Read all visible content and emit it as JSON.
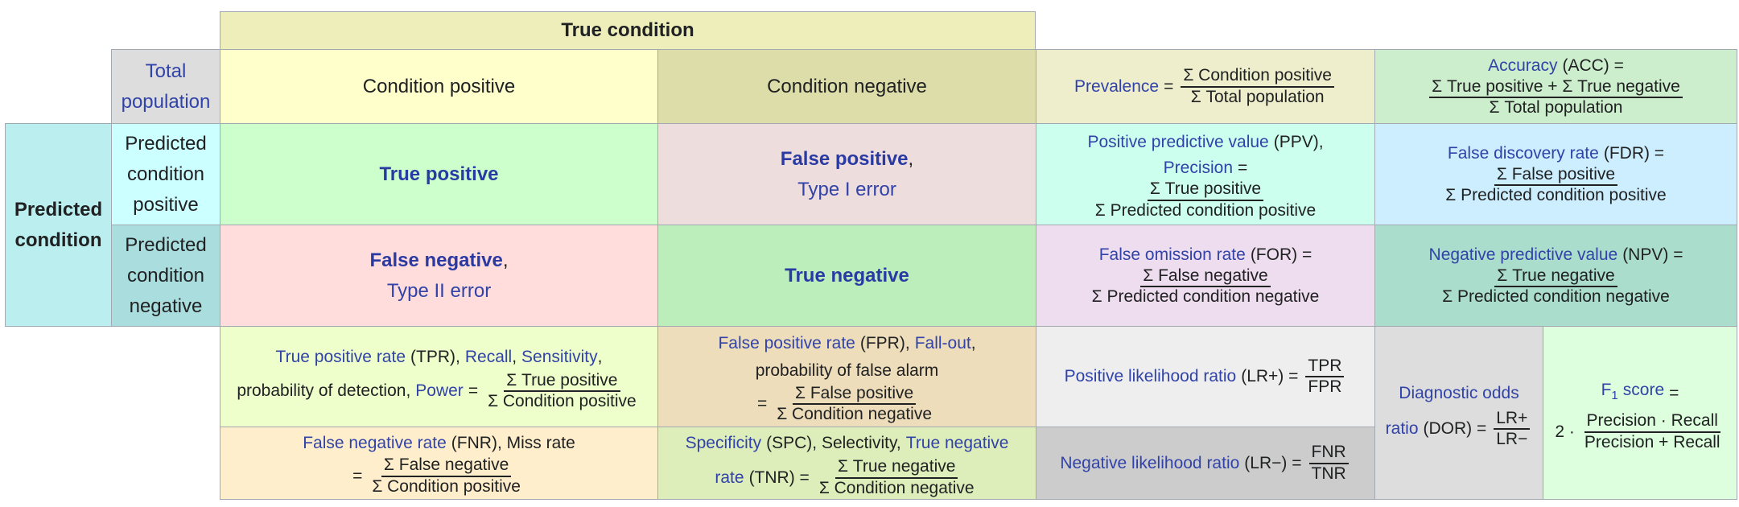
{
  "header": {
    "true_condition": "True condition"
  },
  "total_population": [
    "Total",
    "population"
  ],
  "condition_positive": "Condition positive",
  "condition_negative": "Condition negative",
  "prevalence": {
    "label": "Prevalence",
    "eq": "=",
    "num": "Σ Condition positive",
    "den": "Σ Total population"
  },
  "accuracy": {
    "label": "Accuracy",
    "abbr": "(ACC) =",
    "num": "Σ True positive + Σ True negative",
    "den": "Σ Total population"
  },
  "predicted_condition": [
    "Predicted",
    "condition"
  ],
  "predicted_positive": [
    "Predicted",
    "condition",
    "positive"
  ],
  "predicted_negative": [
    "Predicted",
    "condition",
    "negative"
  ],
  "true_positive": "True positive",
  "false_positive": {
    "bold": "False positive",
    "comma": ",",
    "sub": "Type I error"
  },
  "false_negative": {
    "bold": "False negative",
    "comma": ",",
    "sub": "Type II error"
  },
  "true_negative": "True negative",
  "ppv": {
    "label": "Positive predictive value",
    "abbr": "(PPV),",
    "label2": "Precision",
    "eq": "=",
    "num": "Σ True positive",
    "den": "Σ Predicted condition positive"
  },
  "fdr": {
    "label": "False discovery rate",
    "abbr": "(FDR) =",
    "num": "Σ False positive",
    "den": "Σ Predicted condition positive"
  },
  "for_rate": {
    "label": "False omission rate",
    "abbr": "(FOR) =",
    "num": "Σ False negative",
    "den": "Σ Predicted condition negative"
  },
  "npv": {
    "label": "Negative predictive value",
    "abbr": "(NPV) =",
    "num": "Σ True negative",
    "den": "Σ Predicted condition negative"
  },
  "tpr": {
    "l1": "True positive rate",
    "t1": "(TPR),",
    "l2": "Recall",
    "t2": ",",
    "l3": "Sensitivity",
    "t3": ",",
    "t4": "probability of detection,",
    "l4": "Power",
    "eq": "=",
    "num": "Σ True positive",
    "den": "Σ Condition positive"
  },
  "fpr": {
    "l1": "False positive rate",
    "t1": "(FPR),",
    "l2": "Fall-out",
    "t2": ",",
    "t3": "probability of false alarm",
    "eq": "=",
    "num": "Σ False positive",
    "den": "Σ Condition negative"
  },
  "fnr": {
    "l1": "False negative rate",
    "t1": "(FNR), Miss rate",
    "eq": "=",
    "num": "Σ False negative",
    "den": "Σ Condition positive"
  },
  "spc": {
    "l1": "Specificity",
    "t1": "(SPC), Selectivity,",
    "l2": "True negative",
    "l3": "rate",
    "t2": "(TNR) =",
    "num": "Σ True negative",
    "den": "Σ Condition negative"
  },
  "lr_pos": {
    "label": "Positive likelihood ratio",
    "abbr": "(LR+) =",
    "num": "TPR",
    "den": "FPR"
  },
  "lr_neg": {
    "label": "Negative likelihood ratio",
    "abbr": "(LR−) =",
    "num": "FNR",
    "den": "TNR"
  },
  "dor": {
    "label1": "Diagnostic odds",
    "label2": "ratio",
    "abbr": "(DOR) =",
    "num": "LR+",
    "den": "LR−"
  },
  "f1": {
    "label": "F",
    "sub": "1",
    "label_rest": "score",
    "eq": "=",
    "lead": "2 ·",
    "num": "Precision · Recall",
    "den": "Precision + Recall"
  },
  "colors": {
    "border": "#a2a9b1",
    "link": "#3143a8",
    "true_condition_bg": "#eeeebb",
    "total_pop_bg": "#dddddd",
    "cond_pos_bg": "#ffffcc",
    "cond_neg_bg": "#ddddaa",
    "prevalence_bg": "#eeeecc",
    "accuracy_bg": "#cceecc",
    "pred_cond_bg": "#bbeeee",
    "pred_pos_bg": "#ccffff",
    "pred_neg_bg": "#aadddd",
    "tp_bg": "#ccffcc",
    "fp_bg": "#eedddd",
    "fn_bg": "#ffdddd",
    "tn_bg": "#bbeebb",
    "ppv_bg": "#ccffee",
    "fdr_bg": "#cceeff",
    "for_bg": "#eeddee",
    "npv_bg": "#aaddcc",
    "tpr_bg": "#eeffcc",
    "fpr_bg": "#eeddbb",
    "fnr_bg": "#ffeecc",
    "spc_bg": "#ddeebb",
    "lrpos_bg": "#eeeeee",
    "lrneg_bg": "#cccccc",
    "dor_bg": "#dddddd",
    "f1_bg": "#ddffdd"
  }
}
